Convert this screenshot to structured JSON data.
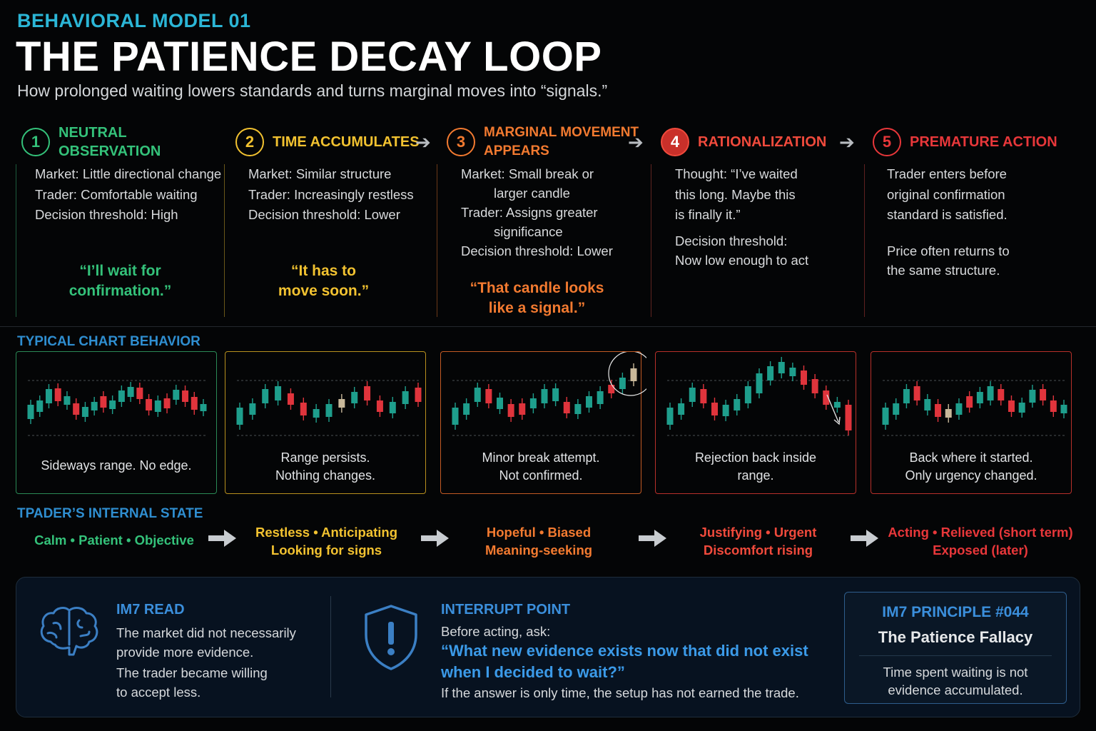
{
  "header": {
    "kicker": "BEHAVIORAL MODEL 01",
    "title": "THE PATIENCE DECAY LOOP",
    "subtitle": "How prolonged waiting lowers standards and turns marginal moves into “signals.”"
  },
  "colors": {
    "step1": "#34c27a",
    "step2": "#f2c230",
    "step3": "#f27a30",
    "step4": "#f04a3c",
    "step5": "#e8373a",
    "accent": "#2f8ed0",
    "bullish": "#1e9e8c",
    "bearish": "#e0343c"
  },
  "steps": [
    {
      "num": "1",
      "title": "NEUTRAL OBSERVATION",
      "lines": [
        "Market: Little directional change",
        "Trader: Comfortable waiting",
        "Decision threshold: High"
      ],
      "quote": [
        "“I’ll wait for",
        "confirmation.”"
      ]
    },
    {
      "num": "2",
      "title": "TIME ACCUMULATES",
      "lines": [
        "Market: Similar structure",
        "Trader: Increasingly restless",
        "Decision threshold: Lower"
      ],
      "quote": [
        "“It has to",
        "move soon.”"
      ]
    },
    {
      "num": "3",
      "title": [
        "MARGINAL MOVEMENT",
        "APPEARS"
      ],
      "lines": [
        "Market: Small break or",
        "larger candle",
        "Trader: Assigns greater",
        "significance",
        "Decision threshold: Lower"
      ],
      "quote": [
        "“That candle looks",
        "like a signal.”"
      ]
    },
    {
      "num": "4",
      "title": "RATIONALIZATION",
      "lines": [
        "Thought: “I’ve waited",
        "this long. Maybe this",
        "is finally it.”",
        "Decision threshold:",
        "Now low enough to act"
      ],
      "quote": []
    },
    {
      "num": "5",
      "title": "PREMATURE ACTION",
      "lines": [
        "Trader enters before",
        "original confirmation",
        "standard is satisfied.",
        "Price often returns to",
        "the same structure."
      ],
      "quote": []
    }
  ],
  "chart_section": {
    "label": "TYPICAL CHART BEHAVIOR",
    "cards": [
      {
        "caption": [
          "Sideways range. No edge."
        ]
      },
      {
        "caption": [
          "Range persists.",
          "Nothing changes."
        ]
      },
      {
        "caption": [
          "Minor break attempt.",
          "Not confirmed."
        ]
      },
      {
        "caption": [
          "Rejection back inside",
          "range."
        ]
      },
      {
        "caption": [
          "Back where it started.",
          "Only urgency changed."
        ]
      }
    ]
  },
  "state_section": {
    "label": "TPADER’S INTERNAL STATE",
    "states": [
      [
        "Calm • Patient • Objective"
      ],
      [
        "Restless • Anticipating",
        "Looking for signs"
      ],
      [
        "Hopeful • Biased",
        "Meaning-seeking"
      ],
      [
        "Justifying • Urgent",
        "Discomfort rising"
      ],
      [
        "Acting • Relieved (short term)",
        "Exposed (later)"
      ]
    ]
  },
  "bottom": {
    "read": {
      "icon": "brain-icon",
      "heading": "IM7 READ",
      "lines": [
        "The market did not necessarily",
        "provide more evidence.",
        "The trader became willing",
        "to accept less."
      ]
    },
    "interrupt": {
      "icon": "shield-alert-icon",
      "heading": "INTERRUPT POINT",
      "ask": "Before acting, ask:",
      "question": [
        "“What new evidence exists now that did not exist",
        "when I decided to wait?”"
      ],
      "footer": "If the answer is only time, the setup has not earned the trade."
    },
    "principle": {
      "label": "IM7 PRINCIPLE #044",
      "name": "The Patience Fallacy",
      "lines": [
        "Time spent waiting is not",
        "evidence accumulated."
      ]
    }
  }
}
